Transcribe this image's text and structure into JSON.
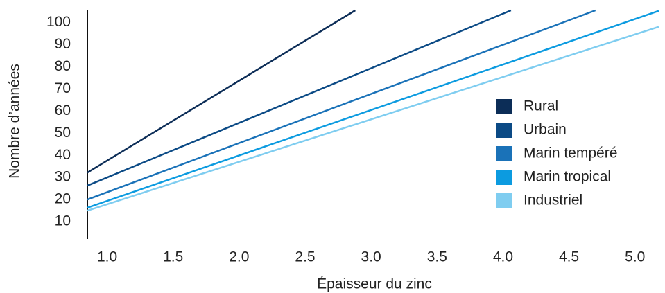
{
  "chart_data": {
    "type": "line",
    "x_label": "Épaisseur du zinc",
    "y_label": "Nombre d’années",
    "xlim": [
      0.85,
      5.18
    ],
    "ylim": [
      2.2,
      105.5
    ],
    "xticks": [
      {
        "value": 1,
        "label": "1.0"
      },
      1.5,
      {
        "value": 2,
        "label": "2.0"
      },
      2.5,
      {
        "value": 3,
        "label": "3.0"
      },
      3.5,
      {
        "value": 4,
        "label": "4.0"
      },
      4.5,
      {
        "value": 5,
        "label": "5.0"
      }
    ],
    "yticks": [
      10,
      20,
      30,
      40,
      50,
      60,
      70,
      80,
      90,
      100
    ],
    "grid": false,
    "legend": "right",
    "series": [
      {
        "name": "Rural",
        "color": "#0c2d57",
        "x": [
          0.85,
          2.88
        ],
        "values": [
          32.2,
          105.5
        ]
      },
      {
        "name": "Urbain",
        "color": "#0b4a85",
        "x": [
          0.85,
          4.06
        ],
        "values": [
          26.3,
          105.5
        ]
      },
      {
        "name": "Marin tempéré",
        "color": "#1a72b8",
        "x": [
          0.85,
          4.7
        ],
        "values": [
          20,
          105.5
        ]
      },
      {
        "name": "Marin tropical",
        "color": "#0c9be0",
        "x": [
          0.85,
          5.18
        ],
        "values": [
          16.3,
          105.3
        ]
      },
      {
        "name": "Industriel",
        "color": "#7fcdf0",
        "x": [
          0.85,
          5.18
        ],
        "values": [
          15,
          98.1
        ]
      }
    ]
  }
}
